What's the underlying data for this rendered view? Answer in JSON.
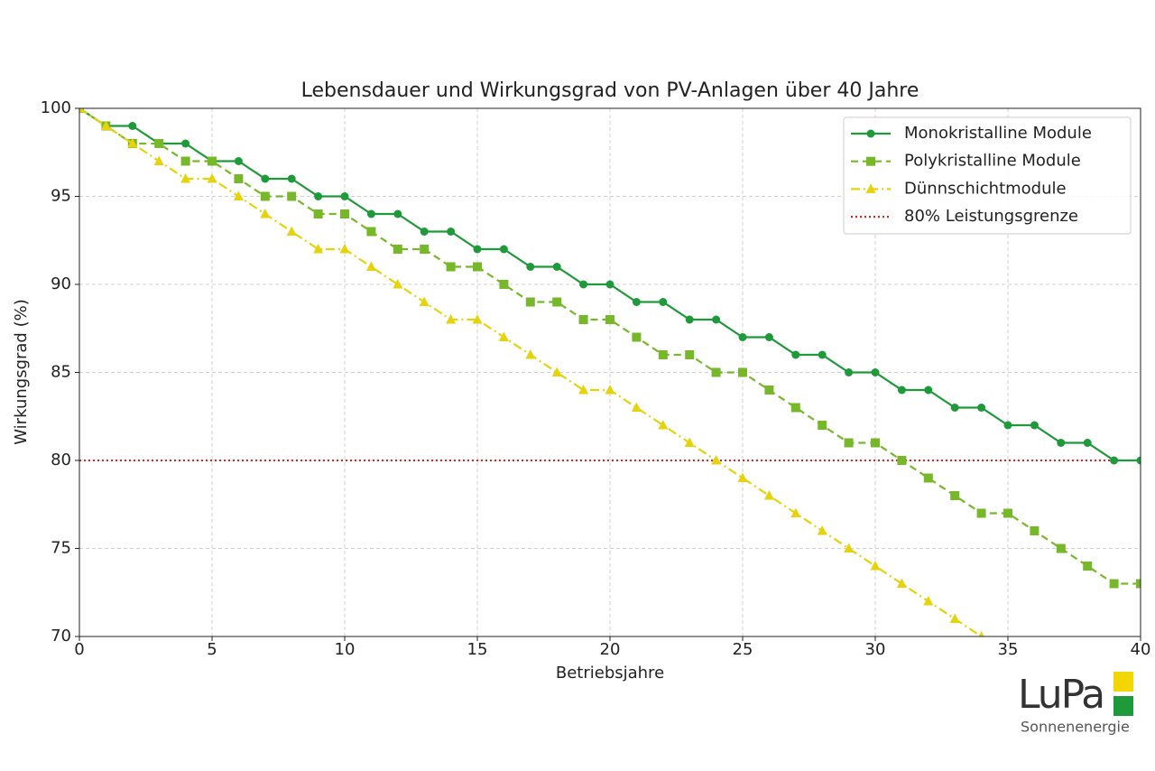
{
  "chart_data": {
    "type": "line",
    "title": "Lebensdauer und Wirkungsgrad von PV-Anlagen über 40 Jahre",
    "xlabel": "Betriebsjahre",
    "ylabel": "Wirkungsgrad (%)",
    "x": [
      0,
      1,
      2,
      3,
      4,
      5,
      6,
      7,
      8,
      9,
      10,
      11,
      12,
      13,
      14,
      15,
      16,
      17,
      18,
      19,
      20,
      21,
      22,
      23,
      24,
      25,
      26,
      27,
      28,
      29,
      30,
      31,
      32,
      33,
      34,
      35,
      36,
      37,
      38,
      39,
      40
    ],
    "series": [
      {
        "name": "Monokristalline Module",
        "color": "#1f9a3b",
        "marker": "circle",
        "linestyle": "solid",
        "values": [
          100,
          99,
          99,
          98,
          98,
          97,
          97,
          96,
          96,
          95,
          95,
          94,
          94,
          93,
          93,
          92,
          92,
          91,
          91,
          90,
          90,
          89,
          89,
          88,
          88,
          87,
          87,
          86,
          86,
          85,
          85,
          84,
          84,
          83,
          83,
          82,
          82,
          81,
          81,
          80,
          80
        ]
      },
      {
        "name": "Polykristalline Module",
        "color": "#77b72a",
        "marker": "square",
        "linestyle": "dashed",
        "values": [
          100,
          99,
          98,
          98,
          97,
          97,
          96,
          95,
          95,
          94,
          94,
          93,
          92,
          92,
          91,
          91,
          90,
          89,
          89,
          88,
          88,
          87,
          86,
          86,
          85,
          85,
          84,
          83,
          82,
          81,
          81,
          80,
          79,
          78,
          77,
          77,
          76,
          75,
          74,
          73,
          73
        ]
      },
      {
        "name": "Dünnschichtmodule",
        "color": "#e6d30c",
        "marker": "triangle",
        "linestyle": "dashdot",
        "values": [
          100,
          99,
          98,
          97,
          96,
          96,
          95,
          94,
          93,
          92,
          92,
          91,
          90,
          89,
          88,
          88,
          87,
          86,
          85,
          84,
          84,
          83,
          82,
          81,
          80,
          79,
          78,
          77,
          76,
          75,
          74,
          73,
          72,
          71,
          70,
          null,
          null,
          null,
          null,
          null,
          null
        ]
      }
    ],
    "reference_lines": [
      {
        "name": "80% Leistungsgrenze",
        "value": 80,
        "color": "#d62728",
        "linestyle": "dotted"
      }
    ],
    "xlim": [
      0,
      40
    ],
    "ylim": [
      70,
      100
    ],
    "xticks": [
      0,
      5,
      10,
      15,
      20,
      25,
      30,
      35,
      40
    ],
    "yticks": [
      70,
      75,
      80,
      85,
      90,
      95,
      100
    ],
    "grid": true,
    "legend": "upper right"
  },
  "logo": {
    "text": "LuPa",
    "subtitle": "Sonnenenergie"
  }
}
